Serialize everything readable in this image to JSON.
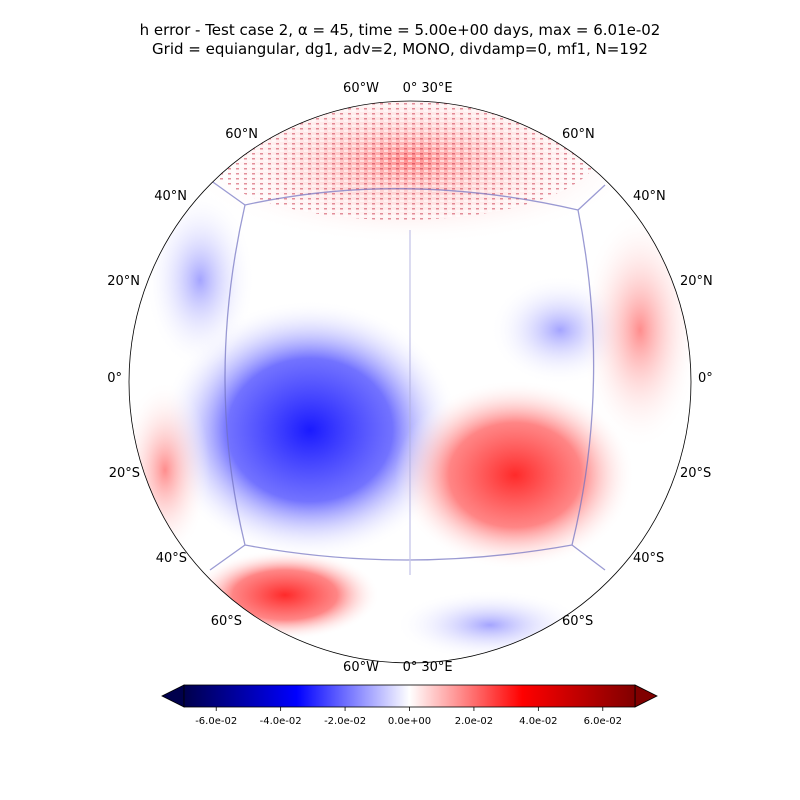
{
  "chart_data": {
    "type": "heatmap",
    "title_line1": "h error - Test case 2, α = 45, time = 5.00e+00 days, max = 6.01e-02",
    "title_line2": "Grid = equiangular, dg1, adv=2, MONO, divdamp=0, mf1, N=192",
    "projection": "orthographic",
    "lat_labels_left": [
      "60°N",
      "40°N",
      "20°N",
      "0°",
      "20°S",
      "40°S",
      "60°S"
    ],
    "lat_labels_right": [
      "60°N",
      "40°N",
      "20°N",
      "0°",
      "20°S",
      "40°S",
      "60°S"
    ],
    "lon_labels_top": [
      "60°W",
      "0°",
      "30°E"
    ],
    "lon_labels_bottom": [
      "60°W",
      "0°",
      "30°E"
    ],
    "colorbar": {
      "colormap": "seismic",
      "vmin": -0.07,
      "vmax": 0.07,
      "extend": "both",
      "ticks": [
        -0.06,
        -0.04,
        -0.02,
        0.0,
        0.02,
        0.04,
        0.06
      ],
      "tick_labels": [
        "-6.0e-02",
        "-4.0e-02",
        "-2.0e-02",
        "0.0e+00",
        "2.0e-02",
        "4.0e-02",
        "6.0e-02"
      ]
    },
    "max_value": 0.0601,
    "colors": {
      "negative_extreme": "#00004c",
      "negative": "#0000ff",
      "zero": "#ffffff",
      "positive": "#ff0000",
      "positive_extreme": "#800000"
    }
  }
}
